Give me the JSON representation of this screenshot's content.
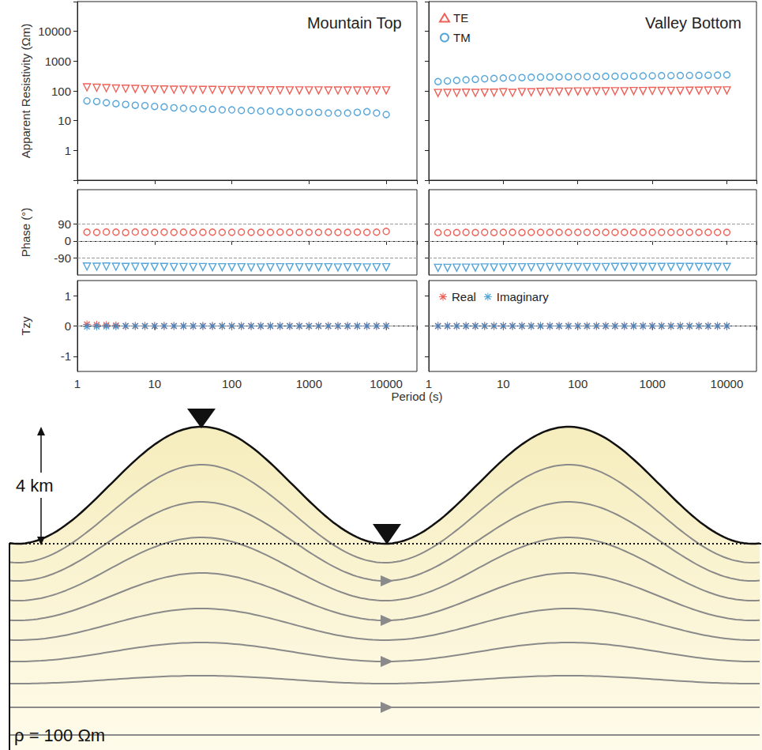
{
  "chart_data": [
    {
      "type": "scatter",
      "title": "Mountain Top",
      "ylabel": "Apparent Resistivity (Ωm)",
      "log": true,
      "grid": false,
      "tick_labels": "y",
      "xlim": [
        1,
        25000
      ],
      "xticks": [
        1,
        10,
        100,
        1000,
        10000
      ],
      "ylim": [
        0.1,
        100000
      ],
      "yticks": [
        1,
        10,
        100,
        1000,
        10000
      ],
      "x": [
        1.33,
        1.78,
        2.37,
        3.16,
        4.22,
        5.62,
        7.5,
        10,
        13.3,
        17.8,
        23.7,
        31.6,
        42.2,
        56.2,
        75,
        100,
        133,
        178,
        237,
        316,
        422,
        562,
        750,
        1000,
        1330,
        1780,
        2370,
        3160,
        4220,
        5620,
        7500,
        10000
      ],
      "series": [
        {
          "name": "TE",
          "color": "#e8392e",
          "marker": "triangle-down",
          "values": [
            132,
            128,
            124,
            120,
            118,
            116,
            114,
            112,
            111,
            110,
            110,
            109,
            108,
            108,
            107,
            107,
            106,
            106,
            105,
            105,
            105,
            104,
            104,
            104,
            104,
            103,
            103,
            103,
            103,
            103,
            103,
            104
          ]
        },
        {
          "name": "TM",
          "color": "#2b8fcf",
          "marker": "circle",
          "values": [
            46,
            44,
            40,
            37,
            35,
            33,
            32,
            30,
            29,
            27,
            26,
            25,
            25,
            24,
            23,
            23,
            22,
            22,
            21,
            21,
            20,
            20,
            19,
            19,
            19,
            18,
            18,
            18,
            19,
            20,
            18,
            16
          ]
        }
      ]
    },
    {
      "type": "scatter",
      "title": "Valley Bottom",
      "log": true,
      "grid": false,
      "tick_labels": false,
      "legend": "upper left",
      "xlim": [
        1,
        25000
      ],
      "xticks": [
        1,
        10,
        100,
        1000,
        10000
      ],
      "ylim": [
        0.1,
        100000
      ],
      "yticks": [
        1,
        10,
        100,
        1000,
        10000
      ],
      "x": [
        1.33,
        1.78,
        2.37,
        3.16,
        4.22,
        5.62,
        7.5,
        10,
        13.3,
        17.8,
        23.7,
        31.6,
        42.2,
        56.2,
        75,
        100,
        133,
        178,
        237,
        316,
        422,
        562,
        750,
        1000,
        1330,
        1780,
        2370,
        3160,
        4220,
        5620,
        7500,
        10000
      ],
      "series": [
        {
          "name": "TE",
          "color": "#e8392e",
          "marker": "triangle-down",
          "values": [
            85,
            86,
            86,
            87,
            86,
            88,
            87,
            90,
            86,
            92,
            90,
            93,
            94,
            95,
            95,
            96,
            96,
            97,
            97,
            98,
            98,
            99,
            99,
            100,
            100,
            101,
            101,
            102,
            102,
            103,
            103,
            104
          ]
        },
        {
          "name": "TM",
          "color": "#2b8fcf",
          "marker": "circle",
          "values": [
            205,
            215,
            225,
            235,
            245,
            255,
            262,
            270,
            275,
            280,
            285,
            290,
            293,
            296,
            298,
            300,
            302,
            305,
            308,
            310,
            312,
            315,
            318,
            320,
            322,
            325,
            328,
            330,
            332,
            335,
            338,
            345
          ]
        }
      ]
    },
    {
      "type": "scatter",
      "ylabel": "Phase (°)",
      "log": "x",
      "grid": true,
      "tick_labels": "y",
      "xlim": [
        1,
        25000
      ],
      "xticks": [
        1,
        10,
        100,
        1000,
        10000
      ],
      "ylim": [
        -180,
        270
      ],
      "yticks": [
        -90,
        0,
        90
      ],
      "x": [
        1.33,
        1.78,
        2.37,
        3.16,
        4.22,
        5.62,
        7.5,
        10,
        13.3,
        17.8,
        23.7,
        31.6,
        42.2,
        56.2,
        75,
        100,
        133,
        178,
        237,
        316,
        422,
        562,
        750,
        1000,
        1330,
        1780,
        2370,
        3160,
        4220,
        5620,
        7500,
        10000
      ],
      "series": [
        {
          "name": "TE",
          "color": "#e8392e",
          "marker": "circle",
          "values": [
            46,
            45,
            47,
            46,
            44,
            47,
            46,
            45,
            46,
            45,
            46,
            45,
            45,
            46,
            45,
            45,
            46,
            45,
            45,
            45,
            46,
            45,
            45,
            45,
            45,
            46,
            45,
            45,
            46,
            45,
            46,
            50
          ]
        },
        {
          "name": "TM",
          "color": "#2b8fcf",
          "marker": "triangle-down",
          "values": [
            -135,
            -136,
            -135,
            -136,
            -137,
            -136,
            -137,
            -137,
            -137,
            -138,
            -138,
            -138,
            -138,
            -139,
            -139,
            -139,
            -139,
            -140,
            -140,
            -139,
            -139,
            -139,
            -139,
            -139,
            -139,
            -139,
            -140,
            -139,
            -139,
            -140,
            -139,
            -139
          ]
        }
      ]
    },
    {
      "type": "scatter",
      "log": "x",
      "grid": true,
      "tick_labels": false,
      "xlim": [
        1,
        25000
      ],
      "xticks": [
        1,
        10,
        100,
        1000,
        10000
      ],
      "ylim": [
        -180,
        270
      ],
      "yticks": [
        -90,
        0,
        90
      ],
      "x": [
        1.33,
        1.78,
        2.37,
        3.16,
        4.22,
        5.62,
        7.5,
        10,
        13.3,
        17.8,
        23.7,
        31.6,
        42.2,
        56.2,
        75,
        100,
        133,
        178,
        237,
        316,
        422,
        562,
        750,
        1000,
        1330,
        1780,
        2370,
        3160,
        4220,
        5620,
        7500,
        10000
      ],
      "series": [
        {
          "name": "TE",
          "color": "#e8392e",
          "marker": "circle",
          "values": [
            44,
            43,
            44,
            45,
            44,
            45,
            44,
            45,
            45,
            44,
            45,
            45,
            45,
            45,
            45,
            45,
            45,
            45,
            45,
            45,
            45,
            45,
            45,
            45,
            45,
            45,
            45,
            45,
            45,
            45,
            45,
            45
          ]
        },
        {
          "name": "TM",
          "color": "#2b8fcf",
          "marker": "triangle-down",
          "values": [
            -142,
            -142,
            -141,
            -141,
            -141,
            -140,
            -140,
            -140,
            -139,
            -139,
            -139,
            -139,
            -138,
            -138,
            -138,
            -138,
            -138,
            -138,
            -138,
            -137,
            -137,
            -137,
            -137,
            -137,
            -137,
            -137,
            -137,
            -137,
            -137,
            -137,
            -137,
            -137
          ]
        }
      ]
    },
    {
      "type": "scatter",
      "ylabel": "Tzy",
      "xlabel": "Period (s)",
      "log": "x",
      "grid": false,
      "tick_labels": true,
      "reference_lines": [
        0
      ],
      "xlim": [
        1,
        25000
      ],
      "xticks": [
        1,
        10,
        100,
        1000,
        10000
      ],
      "ylim": [
        -1.5,
        1.5
      ],
      "yticks": [
        -1,
        0,
        1
      ],
      "x": [
        1.33,
        1.78,
        2.37,
        3.16,
        4.22,
        5.62,
        7.5,
        10,
        13.3,
        17.8,
        23.7,
        31.6,
        42.2,
        56.2,
        75,
        100,
        133,
        178,
        237,
        316,
        422,
        562,
        750,
        1000,
        1330,
        1780,
        2370,
        3160,
        4220,
        5620,
        7500,
        10000
      ],
      "series": [
        {
          "name": "Real",
          "color": "#e8392e",
          "marker": "asterisk",
          "values": [
            0.05,
            0.04,
            0.03,
            0.02,
            0,
            0,
            0,
            0,
            0,
            0,
            0,
            0,
            0,
            0,
            0,
            0,
            0,
            0,
            0,
            0,
            0,
            0,
            0,
            0,
            0,
            0,
            0,
            0,
            0,
            0,
            0,
            0
          ]
        },
        {
          "name": "Imaginary",
          "color": "#2b8fcf",
          "marker": "asterisk",
          "values": [
            -0.02,
            -0.02,
            -0.01,
            -0.01,
            0,
            0,
            0,
            0,
            0,
            0,
            0,
            0,
            0,
            0,
            0,
            0,
            0,
            0,
            0,
            0,
            0,
            0,
            0,
            0,
            0,
            0,
            0,
            0,
            0,
            0,
            0,
            0
          ]
        }
      ]
    },
    {
      "type": "scatter",
      "log": "x",
      "grid": false,
      "tick_labels": "x",
      "legend": "upper left",
      "reference_lines": [
        0
      ],
      "xlim": [
        1,
        25000
      ],
      "xticks": [
        1,
        10,
        100,
        1000,
        10000
      ],
      "ylim": [
        -1.5,
        1.5
      ],
      "yticks": [
        -1,
        0,
        1
      ],
      "x": [
        1.33,
        1.78,
        2.37,
        3.16,
        4.22,
        5.62,
        7.5,
        10,
        13.3,
        17.8,
        23.7,
        31.6,
        42.2,
        56.2,
        75,
        100,
        133,
        178,
        237,
        316,
        422,
        562,
        750,
        1000,
        1330,
        1780,
        2370,
        3160,
        4220,
        5620,
        7500,
        10000
      ],
      "series": [
        {
          "name": "Real",
          "color": "#e8392e",
          "marker": "asterisk",
          "values": [
            0,
            0,
            0,
            0,
            0,
            0,
            0,
            0,
            0,
            0,
            0,
            0,
            0,
            0,
            0,
            0,
            0,
            0,
            0,
            0,
            0,
            0,
            0,
            0,
            0,
            0,
            0,
            0,
            0,
            0,
            0,
            0
          ]
        },
        {
          "name": "Imaginary",
          "color": "#2b8fcf",
          "marker": "asterisk",
          "values": [
            0,
            0,
            0,
            0,
            0,
            0,
            0,
            0,
            0,
            0,
            0,
            0,
            0,
            0,
            0,
            0,
            0,
            0,
            0,
            0,
            0,
            0,
            0,
            0,
            0,
            0,
            0,
            0,
            0,
            0,
            0,
            0
          ]
        }
      ]
    }
  ],
  "diagram": {
    "height_label": "4 km",
    "resistivity_label": "ρ = 100 Ωm"
  }
}
